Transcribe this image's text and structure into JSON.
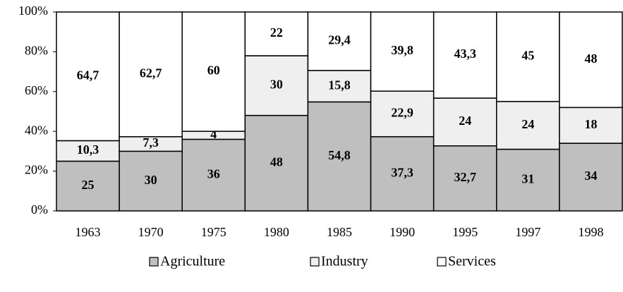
{
  "chart_data": {
    "type": "stacked_bar",
    "categories": [
      "1963",
      "1970",
      "1975",
      "1980",
      "1985",
      "1990",
      "1995",
      "1997",
      "1998"
    ],
    "series": [
      {
        "name": "Agriculture",
        "color": "#bfbfbf",
        "values": [
          25,
          30,
          36,
          48,
          54.8,
          37.3,
          32.7,
          31,
          34
        ],
        "value_labels": [
          "25",
          "30",
          "36",
          "48",
          "54,8",
          "37,3",
          "32,7",
          "31",
          "34"
        ]
      },
      {
        "name": "Industry",
        "color": "#efefef",
        "values": [
          10.3,
          7.3,
          4,
          30,
          15.8,
          22.9,
          24,
          24,
          18
        ],
        "value_labels": [
          "10,3",
          "7,3",
          "4",
          "30",
          "15,8",
          "22,9",
          "24",
          "24",
          "18"
        ]
      },
      {
        "name": "Services",
        "color": "#ffffff",
        "values": [
          64.7,
          62.7,
          60,
          22,
          29.4,
          39.8,
          43.3,
          45,
          48
        ],
        "value_labels": [
          "64,7",
          "62,7",
          "60",
          "22",
          "29,4",
          "39,8",
          "43,3",
          "45",
          "48"
        ]
      }
    ],
    "ylim": [
      0,
      100
    ],
    "yticks": [
      {
        "value": 0,
        "label": "0%"
      },
      {
        "value": 20,
        "label": "20%"
      },
      {
        "value": 40,
        "label": "40%"
      },
      {
        "value": 60,
        "label": "60%"
      },
      {
        "value": 80,
        "label": "80%"
      },
      {
        "value": 100,
        "label": "100%"
      }
    ],
    "legend": "bottom"
  }
}
